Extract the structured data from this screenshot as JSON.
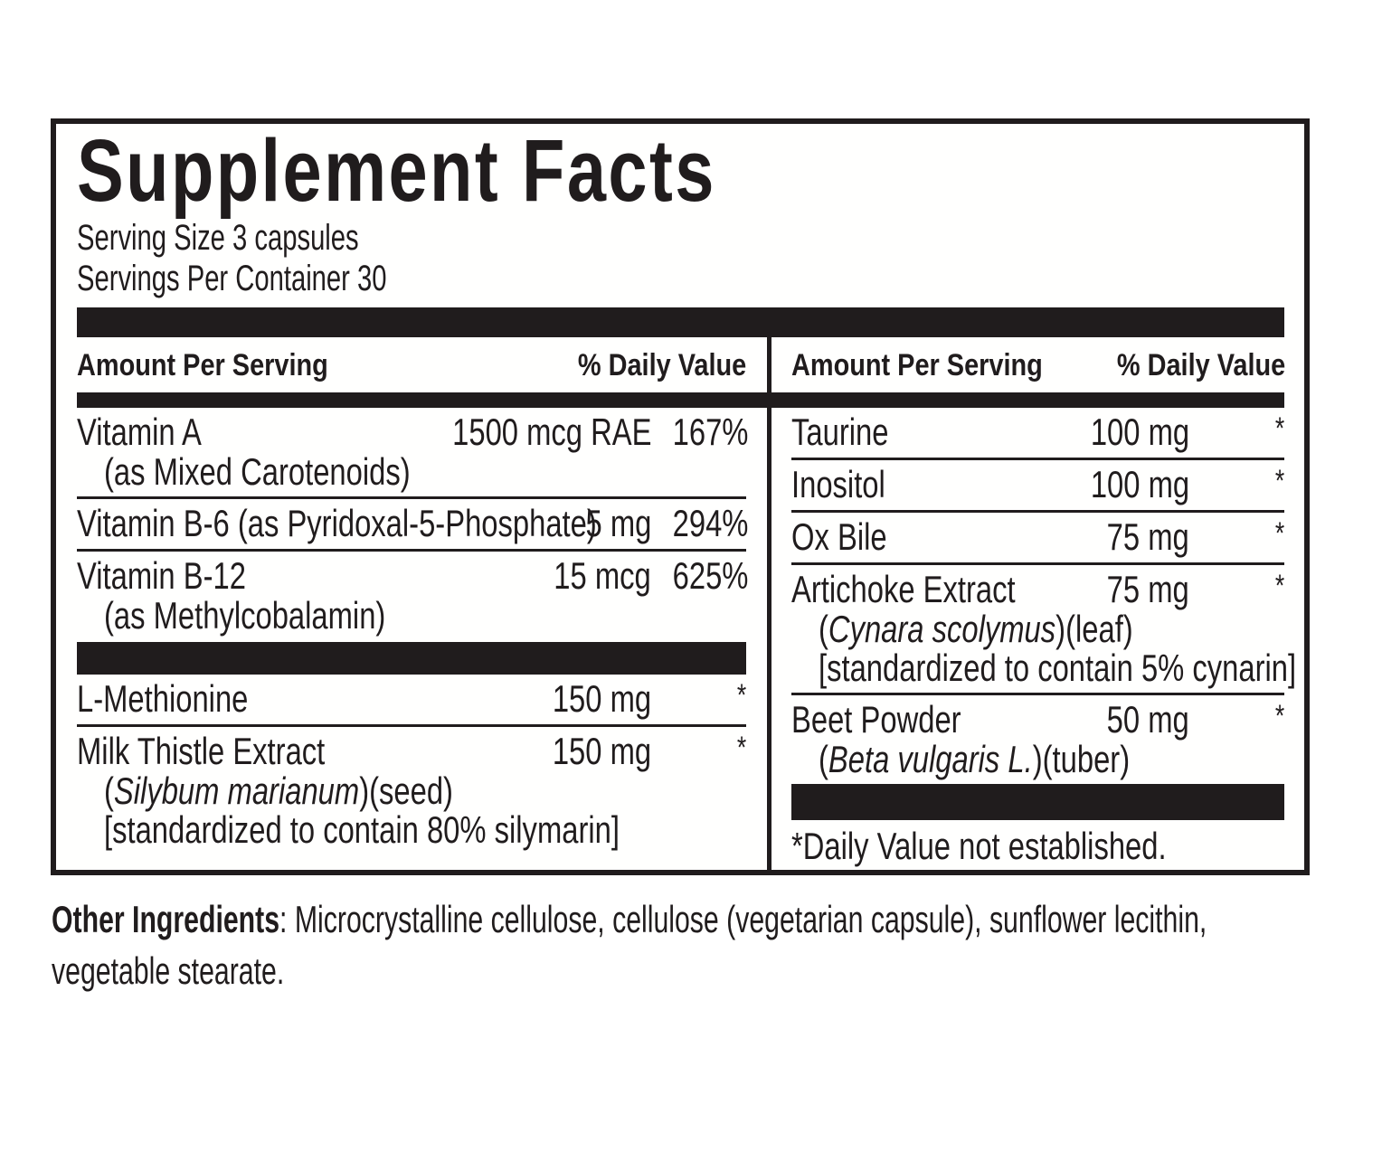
{
  "colors": {
    "ink": "#201c1d",
    "paper": "#fffffe"
  },
  "supplement_facts": {
    "title": "Supplement Facts",
    "serving_size": "Serving Size 3 capsules",
    "servings_per_container": "Servings Per Container 30",
    "header": {
      "amount": "Amount Per Serving",
      "daily_value": "% Daily Value"
    },
    "left_column": {
      "rows": [
        {
          "name": "Vitamin A",
          "amount": "1500 mcg RAE",
          "dv": "167%",
          "sub1": "(as Mixed Carotenoids)"
        },
        {
          "name": "Vitamin B-6 (as Pyridoxal-5-Phosphate)",
          "amount": "5 mg",
          "dv": "294%"
        },
        {
          "name": "Vitamin B-12",
          "amount": "15 mcg",
          "dv": "625%",
          "sub1": "(as Methylcobalamin)"
        },
        {
          "name": "L-Methionine",
          "amount": "150 mg",
          "dv": "*"
        },
        {
          "name": "Milk Thistle Extract",
          "amount": "150 mg",
          "dv": "*",
          "latin": {
            "pre": "(",
            "italic": "Silybum marianum",
            "post": ")(seed)"
          },
          "sub2": "[standardized to contain 80% silymarin]"
        }
      ]
    },
    "right_column": {
      "rows": [
        {
          "name": "Taurine",
          "amount": "100 mg",
          "dv": "*"
        },
        {
          "name": "Inositol",
          "amount": "100 mg",
          "dv": "*"
        },
        {
          "name": "Ox Bile",
          "amount": "75 mg",
          "dv": "*"
        },
        {
          "name": "Artichoke Extract",
          "amount": "75 mg",
          "dv": "*",
          "latin": {
            "pre": "(",
            "italic": "Cynara scolymus",
            "post": ")(leaf)"
          },
          "sub2": "[standardized to contain 5% cynarin]"
        },
        {
          "name": "Beet Powder",
          "amount": "50 mg",
          "dv": "*",
          "latin": {
            "pre": "(",
            "italic": "Beta vulgaris L.",
            "post": ")(tuber)"
          }
        }
      ],
      "footnote": "*Daily Value not established."
    }
  },
  "other_ingredients": {
    "label": "Other Ingredients",
    "text": ": Microcrystalline cellulose, cellulose (vegetarian capsule), sunflower lecithin, vegetable stearate."
  }
}
